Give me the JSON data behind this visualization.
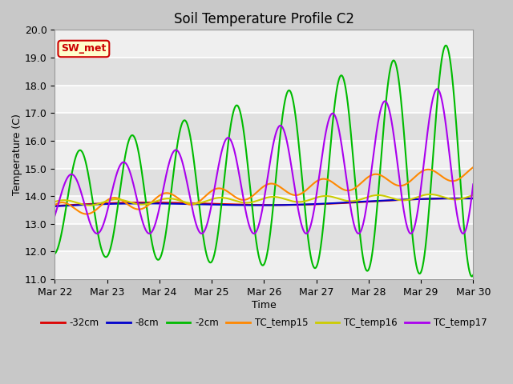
{
  "title": "Soil Temperature Profile C2",
  "xlabel": "Time",
  "ylabel": "Temperature (C)",
  "ylim": [
    11.0,
    20.0
  ],
  "yticks": [
    11.0,
    12.0,
    13.0,
    14.0,
    15.0,
    16.0,
    17.0,
    18.0,
    19.0,
    20.0
  ],
  "annotation_text": "SW_met",
  "annotation_bg": "#ffffcc",
  "annotation_border": "#cc0000",
  "annotation_text_color": "#cc0000",
  "fig_facecolor": "#c8c8c8",
  "plot_facecolor": "#e0e0e0",
  "grid_color": "#ffffff",
  "series": {
    "-32cm": {
      "color": "#dd0000",
      "linewidth": 1.5
    },
    "-8cm": {
      "color": "#0000cc",
      "linewidth": 1.5
    },
    "-2cm": {
      "color": "#00bb00",
      "linewidth": 1.5
    },
    "TC_temp15": {
      "color": "#ff8800",
      "linewidth": 1.5
    },
    "TC_temp16": {
      "color": "#cccc00",
      "linewidth": 1.5
    },
    "TC_temp17": {
      "color": "#aa00ee",
      "linewidth": 1.5
    }
  },
  "x_start": 0,
  "x_end": 8,
  "x_ticks": [
    0,
    1,
    2,
    3,
    4,
    5,
    6,
    7,
    8
  ],
  "x_tick_labels": [
    "Mar 22",
    "Mar 23",
    "Mar 24",
    "Mar 25",
    "Mar 26",
    "Mar 27",
    "Mar 28",
    "Mar 29",
    "Mar 30"
  ]
}
